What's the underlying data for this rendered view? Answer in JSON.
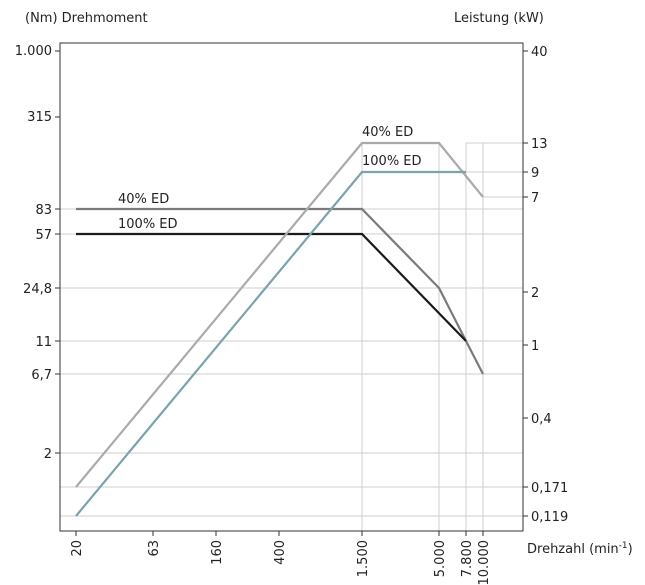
{
  "chart_data": {
    "type": "line",
    "title_left": "(Nm) Drehmoment",
    "title_right": "Leistung (kW)",
    "xlabel": "Drehzahl (min",
    "xlabel_sup": "-1",
    "xlabel_close": ")",
    "x_ticks": [
      "20",
      "63",
      "160",
      "400",
      "1.500",
      "5.000",
      "7.800",
      "10.000"
    ],
    "x_tick_values": [
      20,
      63,
      160,
      400,
      1500,
      5000,
      7800,
      10000
    ],
    "x_scale": "log",
    "y_left_ticks": [
      "1.000",
      "315",
      "83",
      "57",
      "24,8",
      "11",
      "6,7",
      "2"
    ],
    "y_right_ticks": [
      "40",
      "13",
      "9",
      "7",
      "2",
      "1",
      "0,4",
      "0,171",
      "0,119"
    ],
    "grid": true,
    "series": [
      {
        "name": "40% ED",
        "axis": "torque",
        "color": "#7a7a7a",
        "points": [
          [
            20,
            83
          ],
          [
            1500,
            83
          ],
          [
            5000,
            24.8
          ],
          [
            7800,
            11
          ],
          [
            10000,
            6.7
          ]
        ]
      },
      {
        "name": "100% ED",
        "axis": "torque",
        "color": "#1a1a1a",
        "points": [
          [
            20,
            57
          ],
          [
            1500,
            57
          ],
          [
            7800,
            11
          ]
        ]
      },
      {
        "name": "40% ED",
        "axis": "power",
        "color": "#aaaaaa",
        "points": [
          [
            20,
            0.171
          ],
          [
            1500,
            13
          ],
          [
            5000,
            13
          ],
          [
            10000,
            7
          ]
        ]
      },
      {
        "name": "100% ED",
        "axis": "power",
        "color": "#7aa3ad",
        "points": [
          [
            20,
            0.119
          ],
          [
            1500,
            9
          ],
          [
            7800,
            9
          ]
        ]
      }
    ]
  }
}
